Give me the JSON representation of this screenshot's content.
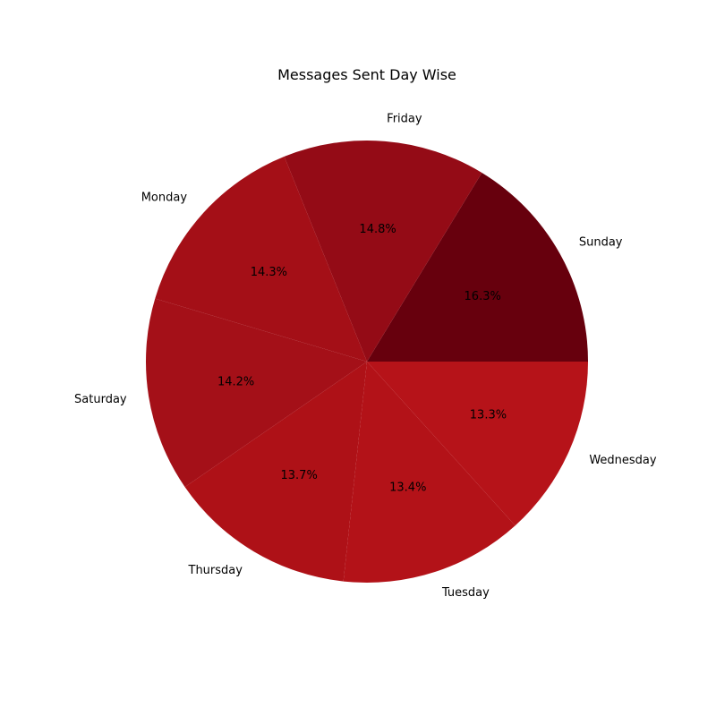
{
  "chart_data": {
    "type": "pie",
    "title": "Messages Sent Day Wise",
    "start_angle_deg": 0,
    "direction": "counterclockwise",
    "slices": [
      {
        "label": "Sunday",
        "percent": 16.3,
        "pct_text": "16.3%",
        "color": "#67000d"
      },
      {
        "label": "Friday",
        "percent": 14.8,
        "pct_text": "14.8%",
        "color": "#940b16"
      },
      {
        "label": "Monday",
        "percent": 14.3,
        "pct_text": "14.3%",
        "color": "#a40f17"
      },
      {
        "label": "Saturday",
        "percent": 14.2,
        "pct_text": "14.2%",
        "color": "#a41018"
      },
      {
        "label": "Thursday",
        "percent": 13.7,
        "pct_text": "13.7%",
        "color": "#ae1117"
      },
      {
        "label": "Tuesday",
        "percent": 13.4,
        "pct_text": "13.4%",
        "color": "#b31218"
      },
      {
        "label": "Wednesday",
        "percent": 13.3,
        "pct_text": "13.3%",
        "color": "#b61319"
      }
    ]
  }
}
